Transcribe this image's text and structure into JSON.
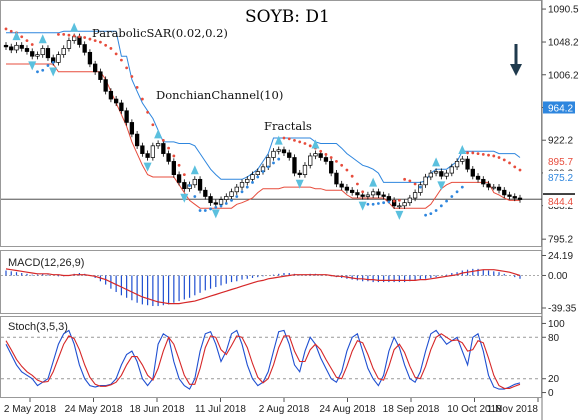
{
  "chart_data": {
    "type": "candlestick",
    "title": "SOYB: D1",
    "annotations": {
      "parabolic_sar": "ParabolicSAR(0.02,0.2)",
      "donchian": "DonchianChannel(10)",
      "fractals": "Fractals"
    },
    "x_ticks": [
      "2 May 2018",
      "24 May 2018",
      "18 Jun 2018",
      "11 Jul 2018",
      "2 Aug 2018",
      "24 Aug 2018",
      "18 Sep 2018",
      "10 Oct 2018",
      "1 Nov 2018"
    ],
    "price_axis": {
      "ticks": [
        "1090.5",
        "1048.2",
        "1006.2",
        "964.2",
        "922.2",
        "880.2",
        "838.2",
        "795.2"
      ],
      "ylim": [
        789,
        1097
      ],
      "current_price": "846.5",
      "highlight_labels": [
        "964.2",
        "895.7",
        "875.2",
        "844.4"
      ]
    },
    "price_series": [
      1042,
      1038,
      1044,
      1040,
      1036,
      1030,
      1032,
      1040,
      1028,
      1022,
      1032,
      1040,
      1050,
      1055,
      1045,
      1035,
      1020,
      1010,
      1000,
      985,
      975,
      970,
      960,
      945,
      930,
      915,
      905,
      900,
      915,
      918,
      905,
      895,
      878,
      868,
      860,
      865,
      872,
      858,
      850,
      842,
      840,
      846,
      850,
      856,
      862,
      868,
      872,
      878,
      882,
      888,
      900,
      908,
      910,
      906,
      900,
      880,
      878,
      890,
      902,
      905,
      900,
      895,
      880,
      866,
      862,
      858,
      855,
      852,
      850,
      852,
      856,
      852,
      850,
      845,
      838,
      838,
      842,
      848,
      855,
      865,
      875,
      880,
      882,
      876,
      880,
      888,
      895,
      898,
      885,
      876,
      872,
      866,
      862,
      862,
      858,
      852,
      850,
      848,
      846
    ],
    "parabolic_sar": [
      1065,
      1062,
      1060,
      1055,
      1050,
      1045,
      1010,
      1012,
      1018,
      1022,
      1058,
      1058,
      1057,
      1056,
      1055,
      1054,
      1052,
      1050,
      1048,
      1044,
      1040,
      1033,
      1025,
      1015,
      1004,
      990,
      975,
      958,
      942,
      930,
      922,
      912,
      902,
      890,
      878,
      864,
      850,
      832,
      832,
      834,
      836,
      838,
      841,
      845,
      850,
      856,
      862,
      868,
      875,
      882,
      888,
      893,
      898,
      925,
      924,
      922,
      920,
      918,
      915,
      912,
      908,
      904,
      900,
      895,
      890,
      884,
      876,
      866,
      856,
      840,
      840,
      841,
      842,
      843,
      844,
      845,
      872,
      870,
      866,
      862,
      826,
      828,
      832,
      838,
      844,
      850,
      856,
      862,
      906,
      906,
      905,
      904,
      903,
      902,
      900,
      897,
      893,
      888,
      884
    ],
    "donchian_upper": [
      1060,
      1060,
      1060,
      1060,
      1060,
      1060,
      1060,
      1060,
      1060,
      1060,
      1060,
      1062,
      1062,
      1062,
      1062,
      1062,
      1062,
      1062,
      1062,
      1062,
      1062,
      1062,
      1030,
      1030,
      1000,
      985,
      970,
      960,
      950,
      935,
      920,
      920,
      920,
      918,
      918,
      918,
      915,
      905,
      895,
      885,
      878,
      872,
      872,
      872,
      872,
      872,
      875,
      880,
      885,
      895,
      905,
      925,
      925,
      925,
      925,
      925,
      925,
      925,
      925,
      920,
      918,
      918,
      918,
      918,
      912,
      905,
      900,
      895,
      890,
      888,
      885,
      880,
      868,
      868,
      868,
      868,
      868,
      868,
      868,
      868,
      870,
      880,
      885,
      885,
      885,
      890,
      895,
      908,
      908,
      908,
      908,
      908,
      908,
      908,
      905,
      905,
      905,
      905,
      900
    ],
    "donchian_lower": [
      1020,
      1020,
      1020,
      1020,
      1020,
      1020,
      1020,
      1020,
      1020,
      1020,
      1010,
      1010,
      1010,
      1010,
      1010,
      1010,
      1010,
      1010,
      1010,
      1000,
      985,
      970,
      955,
      940,
      920,
      905,
      890,
      878,
      875,
      875,
      875,
      875,
      875,
      865,
      855,
      845,
      840,
      835,
      835,
      835,
      835,
      835,
      835,
      835,
      840,
      842,
      845,
      848,
      855,
      860,
      860,
      860,
      860,
      862,
      862,
      862,
      862,
      862,
      862,
      860,
      860,
      858,
      858,
      858,
      858,
      852,
      848,
      848,
      848,
      848,
      848,
      848,
      848,
      842,
      835,
      835,
      835,
      835,
      835,
      835,
      835,
      840,
      850,
      860,
      865,
      868,
      868,
      868,
      868,
      868,
      868,
      868,
      868,
      855,
      852,
      848,
      845,
      845,
      845
    ],
    "macd": {
      "label": "MACD(12,26,9)",
      "ticks": [
        "24.19",
        "0.00",
        "-39.35"
      ],
      "ylim": [
        -43,
        26
      ],
      "histogram": [
        6,
        5,
        4,
        3,
        2,
        1,
        1,
        2,
        1,
        0,
        -1,
        -1,
        0,
        2,
        3,
        2,
        0,
        -3,
        -7,
        -11,
        -16,
        -20,
        -24,
        -27,
        -30,
        -33,
        -35,
        -36,
        -37,
        -37,
        -36,
        -35,
        -33,
        -31,
        -29,
        -27,
        -24,
        -21,
        -18,
        -16,
        -14,
        -12,
        -10,
        -8,
        -7,
        -5,
        -4,
        -3,
        -2,
        -1,
        0,
        1,
        2,
        3,
        3,
        2,
        1,
        1,
        2,
        2,
        1,
        0,
        -1,
        -2,
        -3,
        -4,
        -5,
        -6,
        -7,
        -7,
        -8,
        -8,
        -8,
        -8,
        -8,
        -8,
        -8,
        -7,
        -6,
        -5,
        -4,
        -3,
        -2,
        0,
        1,
        3,
        4,
        6,
        7,
        8,
        8,
        7,
        6,
        5,
        4,
        2,
        0,
        -2,
        -4
      ],
      "signal": [
        8,
        7,
        6,
        5,
        4,
        3,
        2,
        2,
        2,
        1,
        1,
        0,
        0,
        1,
        1,
        1,
        0,
        -1,
        -3,
        -5,
        -8,
        -11,
        -14,
        -17,
        -20,
        -23,
        -26,
        -28,
        -30,
        -32,
        -33,
        -34,
        -34,
        -34,
        -33,
        -32,
        -31,
        -29,
        -27,
        -25,
        -23,
        -21,
        -19,
        -17,
        -15,
        -13,
        -11,
        -9,
        -7,
        -6,
        -4,
        -3,
        -2,
        -1,
        0,
        1,
        1,
        1,
        1,
        1,
        1,
        1,
        0,
        -1,
        -1,
        -2,
        -3,
        -4,
        -4,
        -5,
        -5,
        -6,
        -6,
        -6,
        -6,
        -6,
        -6,
        -6,
        -6,
        -5,
        -5,
        -4,
        -3,
        -2,
        -1,
        0,
        1,
        3,
        4,
        5,
        6,
        7,
        7,
        7,
        6,
        5,
        4,
        2,
        0
      ]
    },
    "stoch": {
      "label": "Stoch(3,5,3)",
      "ticks": [
        "100",
        "80",
        "20",
        "0"
      ],
      "levels": [
        80,
        20
      ],
      "ylim": [
        -5,
        105
      ],
      "k": [
        70,
        55,
        40,
        30,
        25,
        20,
        10,
        15,
        20,
        45,
        70,
        85,
        90,
        70,
        40,
        20,
        10,
        8,
        10,
        10,
        12,
        20,
        40,
        55,
        60,
        45,
        20,
        10,
        20,
        70,
        85,
        80,
        45,
        20,
        10,
        5,
        20,
        60,
        85,
        88,
        70,
        45,
        60,
        85,
        90,
        70,
        40,
        20,
        10,
        15,
        30,
        60,
        88,
        90,
        70,
        40,
        30,
        60,
        80,
        70,
        50,
        35,
        20,
        15,
        30,
        60,
        80,
        85,
        60,
        35,
        20,
        10,
        25,
        60,
        80,
        65,
        40,
        20,
        15,
        30,
        60,
        85,
        90,
        80,
        70,
        75,
        80,
        60,
        40,
        80,
        85,
        60,
        25,
        8,
        5,
        5,
        8,
        12,
        14
      ],
      "d": [
        75,
        62,
        48,
        38,
        30,
        25,
        18,
        15,
        16,
        30,
        50,
        70,
        82,
        78,
        62,
        40,
        22,
        12,
        9,
        9,
        11,
        15,
        25,
        40,
        52,
        52,
        40,
        25,
        18,
        35,
        60,
        80,
        70,
        48,
        25,
        12,
        12,
        35,
        65,
        82,
        80,
        62,
        55,
        68,
        82,
        80,
        65,
        42,
        22,
        14,
        20,
        40,
        65,
        82,
        82,
        60,
        45,
        45,
        62,
        70,
        62,
        48,
        35,
        22,
        20,
        38,
        60,
        75,
        72,
        55,
        35,
        20,
        18,
        38,
        62,
        70,
        58,
        38,
        22,
        20,
        38,
        62,
        80,
        85,
        80,
        75,
        76,
        72,
        60,
        62,
        75,
        72,
        50,
        25,
        10,
        6,
        6,
        9,
        12
      ]
    }
  }
}
